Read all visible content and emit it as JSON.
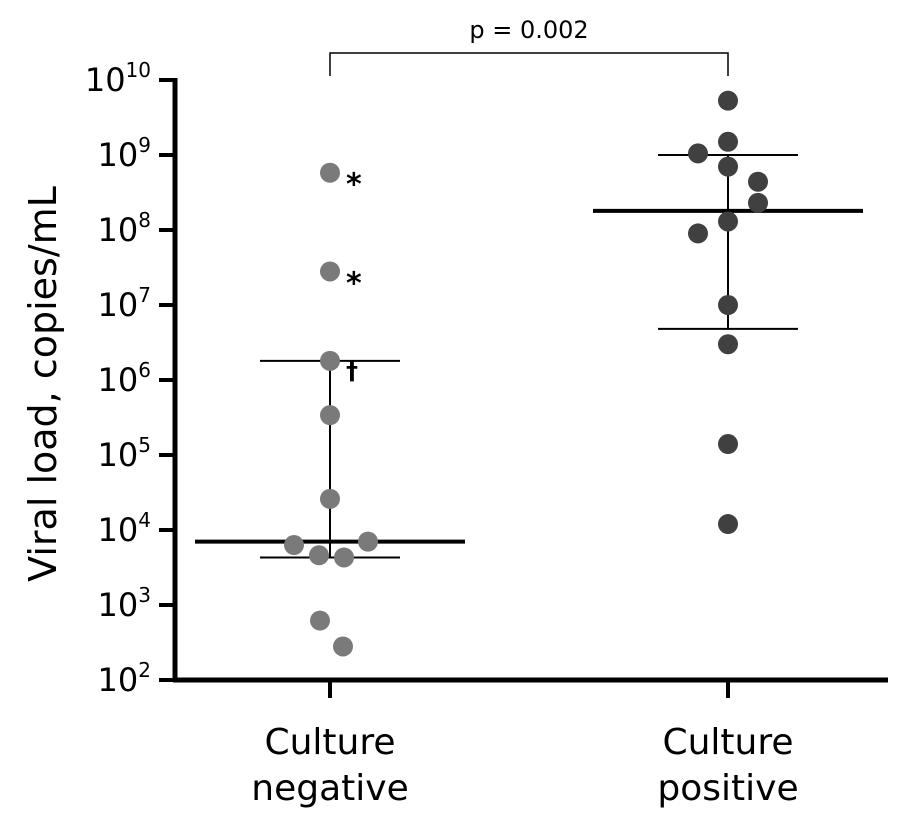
{
  "chart_data": {
    "type": "scatter",
    "ylabel": "Viral load, copies/mL",
    "yscale": "log",
    "ylim": [
      100,
      10000000000
    ],
    "yticks": [
      {
        "value": 100,
        "base": "10",
        "exp": "2"
      },
      {
        "value": 1000,
        "base": "10",
        "exp": "3"
      },
      {
        "value": 10000,
        "base": "10",
        "exp": "4"
      },
      {
        "value": 100000,
        "base": "10",
        "exp": "5"
      },
      {
        "value": 1000000,
        "base": "10",
        "exp": "6"
      },
      {
        "value": 10000000,
        "base": "10",
        "exp": "7"
      },
      {
        "value": 100000000,
        "base": "10",
        "exp": "8"
      },
      {
        "value": 1000000000,
        "base": "10",
        "exp": "9"
      },
      {
        "value": 10000000000,
        "base": "10",
        "exp": "10"
      }
    ],
    "categories": [
      {
        "line1": "Culture",
        "line2": "negative"
      },
      {
        "line1": "Culture",
        "line2": "positive"
      }
    ],
    "groups": [
      {
        "color": "#7a7a7a",
        "median": 7000,
        "iqr": [
          4300,
          1800000
        ],
        "points": [
          {
            "y": 580000000,
            "dx": 0,
            "marker": "*"
          },
          {
            "y": 28000000,
            "dx": 0,
            "marker": "*"
          },
          {
            "y": 1800000,
            "dx": 0,
            "marker": "†"
          },
          {
            "y": 340000,
            "dx": 0,
            "marker": ""
          },
          {
            "y": 26000,
            "dx": 0,
            "marker": ""
          },
          {
            "y": 6300,
            "dx": -36,
            "marker": ""
          },
          {
            "y": 7000,
            "dx": 38,
            "marker": ""
          },
          {
            "y": 4600,
            "dx": -11,
            "marker": ""
          },
          {
            "y": 4300,
            "dx": 14,
            "marker": ""
          },
          {
            "y": 620,
            "dx": -10,
            "marker": ""
          },
          {
            "y": 280,
            "dx": 13,
            "marker": ""
          }
        ]
      },
      {
        "color": "#404040",
        "median": 180000000,
        "iqr": [
          4800000,
          1000000000
        ],
        "points": [
          {
            "y": 5300000000,
            "dx": 0,
            "marker": ""
          },
          {
            "y": 1500000000,
            "dx": 0,
            "marker": ""
          },
          {
            "y": 1050000000,
            "dx": -30,
            "marker": ""
          },
          {
            "y": 700000000,
            "dx": 0,
            "marker": ""
          },
          {
            "y": 440000000,
            "dx": 30,
            "marker": ""
          },
          {
            "y": 230000000,
            "dx": 30,
            "marker": ""
          },
          {
            "y": 130000000,
            "dx": 0,
            "marker": ""
          },
          {
            "y": 90000000,
            "dx": -30,
            "marker": ""
          },
          {
            "y": 10000000,
            "dx": 0,
            "marker": ""
          },
          {
            "y": 3000000,
            "dx": 0,
            "marker": ""
          },
          {
            "y": 140000,
            "dx": 0,
            "marker": ""
          },
          {
            "y": 12000,
            "dx": 0,
            "marker": ""
          }
        ]
      }
    ],
    "annotation": {
      "text": "p = 0.002"
    }
  }
}
